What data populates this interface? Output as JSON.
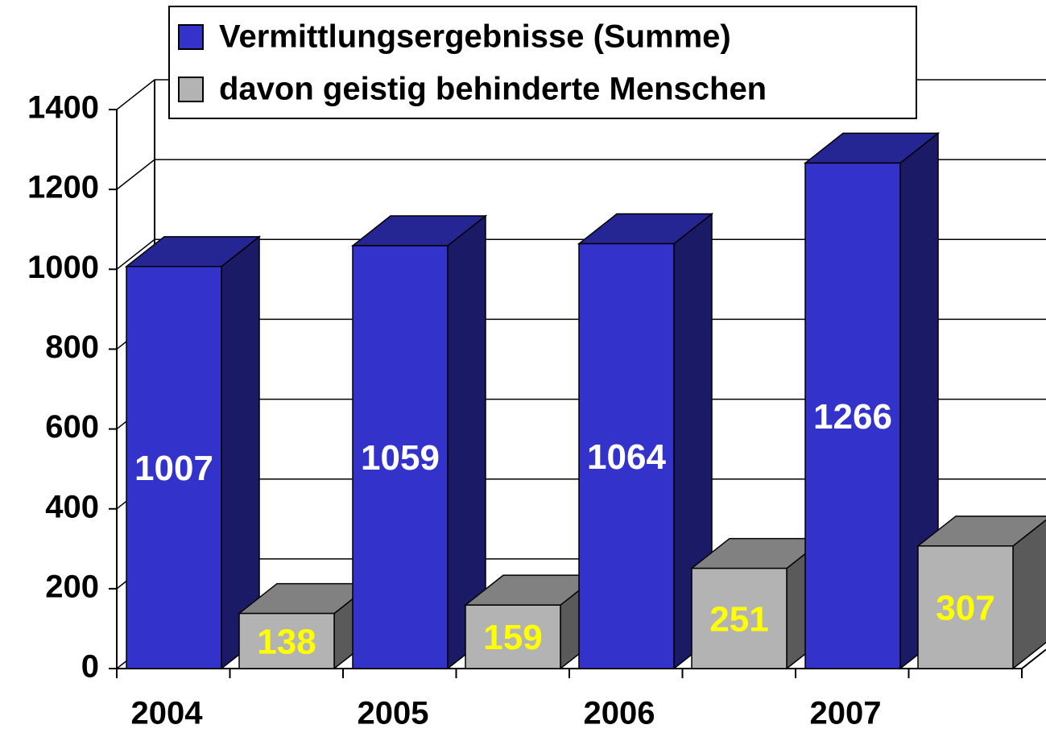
{
  "chart_data": {
    "type": "bar3d",
    "categories": [
      "2004",
      "2005",
      "2006",
      "2007"
    ],
    "series": [
      {
        "name": "Vermittlungsergebnisse (Summe)",
        "color": "#3333cc",
        "values": [
          1007,
          1059,
          1064,
          1266
        ]
      },
      {
        "name": "davon geistig behinderte Menschen",
        "color": "#b3b3b3",
        "values": [
          138,
          159,
          251,
          307
        ]
      }
    ],
    "ylim": [
      0,
      1400
    ],
    "yticks": [
      0,
      200,
      400,
      600,
      800,
      1000,
      1200,
      1400
    ],
    "grid": true,
    "legend": "top"
  }
}
